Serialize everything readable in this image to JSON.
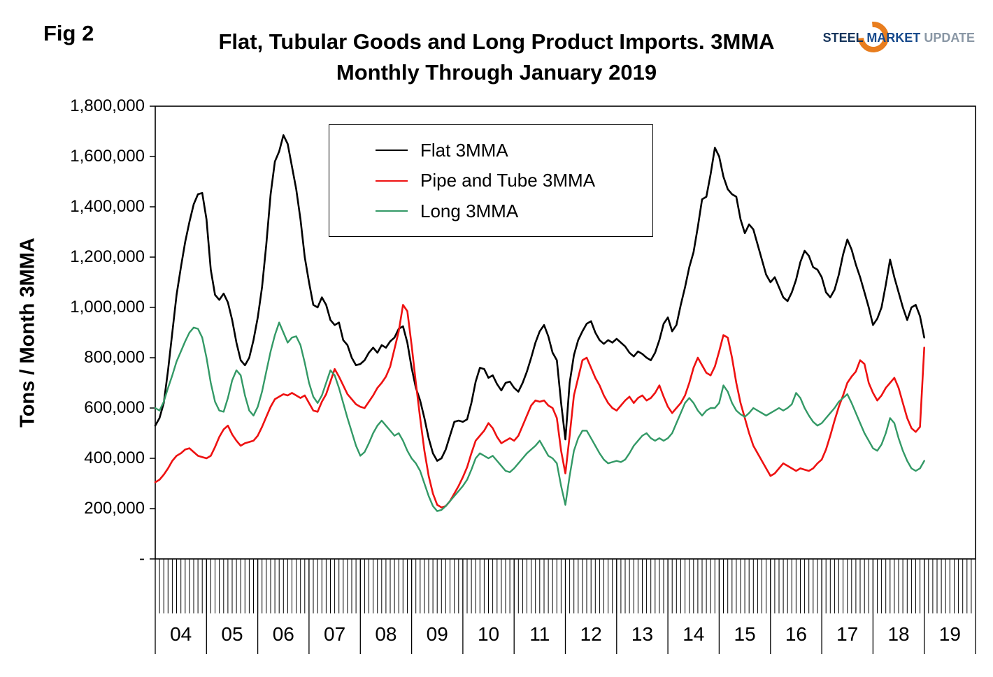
{
  "figure": {
    "label": "Fig 2"
  },
  "title": {
    "line1": "Flat, Tubular Goods and Long Product Imports. 3MMA",
    "line2": "Monthly Through January 2019"
  },
  "logo": {
    "word1": "STEEL",
    "word2": "MARKET",
    "word3": "UPDATE",
    "accent_color": "#e87d1e"
  },
  "chart_data": {
    "type": "line",
    "title": "Flat, Tubular Goods and Long Product Imports. 3MMA Monthly Through January 2019",
    "xlabel": "",
    "ylabel": "Tons / Month 3MMA",
    "ylim": [
      0,
      1800000
    ],
    "y_tick_step": 200000,
    "y_tick_labels": [
      "-",
      "200,000",
      "400,000",
      "600,000",
      "800,000",
      "1,000,000",
      "1,200,000",
      "1,400,000",
      "1,600,000",
      "1,800,000"
    ],
    "grid": false,
    "legend_position": "top-center",
    "x_frequency": "monthly",
    "x_start": "2004-01",
    "x_end": "2019-01",
    "x_year_labels": [
      "04",
      "05",
      "06",
      "07",
      "08",
      "09",
      "10",
      "11",
      "12",
      "13",
      "14",
      "15",
      "16",
      "17",
      "18",
      "19"
    ],
    "values_unit": "thousand tons per month (multiply by 1000 for tons)",
    "series": [
      {
        "name": "Flat 3MMA",
        "color": "#000000",
        "values": [
          530,
          560,
          620,
          750,
          900,
          1050,
          1160,
          1260,
          1340,
          1410,
          1450,
          1455,
          1350,
          1150,
          1050,
          1030,
          1055,
          1020,
          950,
          860,
          790,
          770,
          800,
          870,
          960,
          1080,
          1250,
          1450,
          1580,
          1620,
          1685,
          1650,
          1560,
          1470,
          1350,
          1200,
          1100,
          1010,
          1000,
          1040,
          1010,
          950,
          930,
          940,
          870,
          850,
          800,
          770,
          775,
          790,
          820,
          840,
          820,
          850,
          840,
          865,
          880,
          915,
          925,
          860,
          760,
          680,
          630,
          560,
          480,
          420,
          390,
          400,
          435,
          490,
          545,
          550,
          545,
          555,
          620,
          705,
          760,
          755,
          720,
          730,
          695,
          670,
          700,
          705,
          680,
          665,
          700,
          745,
          800,
          860,
          905,
          930,
          885,
          820,
          790,
          620,
          475,
          700,
          810,
          870,
          905,
          935,
          945,
          900,
          870,
          855,
          870,
          860,
          875,
          860,
          845,
          820,
          805,
          825,
          815,
          800,
          790,
          820,
          870,
          935,
          960,
          905,
          930,
          1010,
          1080,
          1160,
          1220,
          1320,
          1430,
          1440,
          1530,
          1635,
          1600,
          1520,
          1470,
          1450,
          1440,
          1350,
          1295,
          1330,
          1310,
          1250,
          1190,
          1130,
          1100,
          1120,
          1080,
          1040,
          1025,
          1060,
          1110,
          1180,
          1225,
          1205,
          1160,
          1150,
          1120,
          1060,
          1040,
          1070,
          1130,
          1210,
          1270,
          1230,
          1170,
          1120,
          1060,
          1000,
          930,
          955,
          1000,
          1090,
          1190,
          1120,
          1060,
          1000,
          950,
          1000,
          1010,
          965,
          880
        ]
      },
      {
        "name": "Pipe and Tube 3MMA",
        "color": "#ee1111",
        "values": [
          305,
          315,
          335,
          360,
          390,
          410,
          420,
          435,
          440,
          425,
          410,
          405,
          400,
          410,
          445,
          485,
          515,
          530,
          495,
          470,
          450,
          460,
          465,
          470,
          490,
          525,
          565,
          605,
          635,
          645,
          655,
          650,
          660,
          650,
          640,
          650,
          620,
          590,
          585,
          625,
          655,
          705,
          755,
          725,
          690,
          655,
          635,
          615,
          605,
          600,
          625,
          650,
          680,
          700,
          725,
          765,
          835,
          905,
          1010,
          985,
          850,
          700,
          560,
          430,
          330,
          260,
          215,
          205,
          210,
          230,
          260,
          290,
          325,
          365,
          420,
          470,
          490,
          510,
          540,
          520,
          485,
          460,
          470,
          480,
          470,
          490,
          530,
          570,
          610,
          630,
          625,
          630,
          610,
          600,
          560,
          430,
          340,
          490,
          650,
          720,
          790,
          800,
          760,
          720,
          690,
          650,
          620,
          600,
          590,
          610,
          630,
          645,
          620,
          640,
          650,
          630,
          640,
          660,
          690,
          645,
          605,
          580,
          600,
          620,
          650,
          700,
          760,
          800,
          770,
          740,
          730,
          765,
          825,
          890,
          880,
          800,
          700,
          620,
          560,
          500,
          450,
          420,
          390,
          360,
          330,
          340,
          360,
          380,
          370,
          360,
          350,
          360,
          355,
          350,
          360,
          380,
          395,
          435,
          490,
          550,
          605,
          650,
          700,
          725,
          745,
          790,
          775,
          700,
          660,
          630,
          650,
          680,
          700,
          720,
          680,
          620,
          560,
          520,
          505,
          525,
          840
        ]
      },
      {
        "name": "Long 3MMA",
        "color": "#339966",
        "values": [
          600,
          590,
          625,
          680,
          730,
          785,
          825,
          865,
          900,
          920,
          915,
          880,
          800,
          700,
          625,
          590,
          585,
          640,
          710,
          750,
          730,
          650,
          590,
          570,
          605,
          665,
          745,
          825,
          890,
          940,
          900,
          860,
          880,
          885,
          850,
          780,
          700,
          645,
          620,
          650,
          700,
          750,
          730,
          680,
          620,
          560,
          505,
          450,
          410,
          425,
          460,
          500,
          530,
          550,
          530,
          510,
          490,
          500,
          470,
          430,
          400,
          380,
          350,
          300,
          250,
          210,
          190,
          195,
          210,
          230,
          250,
          270,
          290,
          315,
          355,
          400,
          420,
          410,
          400,
          410,
          390,
          370,
          350,
          345,
          360,
          380,
          400,
          420,
          435,
          450,
          470,
          440,
          410,
          400,
          380,
          290,
          215,
          330,
          430,
          480,
          510,
          510,
          480,
          450,
          420,
          395,
          380,
          385,
          390,
          385,
          395,
          420,
          450,
          470,
          490,
          500,
          480,
          470,
          480,
          470,
          480,
          500,
          540,
          580,
          620,
          640,
          620,
          590,
          570,
          590,
          600,
          600,
          620,
          690,
          665,
          620,
          590,
          575,
          565,
          580,
          600,
          590,
          580,
          570,
          580,
          590,
          600,
          590,
          600,
          615,
          660,
          640,
          600,
          570,
          545,
          530,
          540,
          560,
          580,
          600,
          625,
          640,
          655,
          620,
          580,
          540,
          500,
          470,
          440,
          430,
          455,
          500,
          560,
          540,
          480,
          430,
          390,
          360,
          350,
          360,
          390
        ]
      }
    ]
  }
}
